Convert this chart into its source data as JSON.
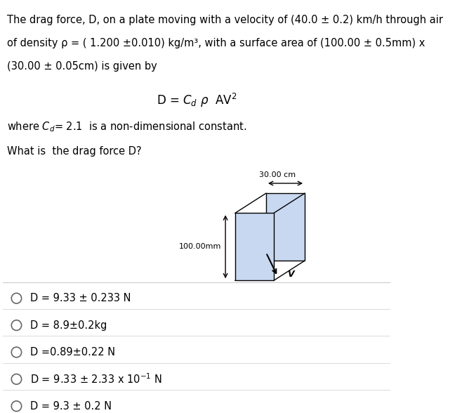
{
  "title_lines": [
    "The drag force, D, on a plate moving with a velocity of (40.0 ± 0.2) km/h through air",
    "of density ρ = ( 1.200 ±0.010) kg/m³, with a surface area of (100.00 ± 0.5mm) x",
    "(30.00 ± 0.05cm) is given by"
  ],
  "question_line": "What is  the drag force D?",
  "diagram_label_top": "30.00 cm",
  "diagram_label_left": "100.00mm",
  "diagram_label_right": "V",
  "options": [
    "D = 9.33 ± 0.233 N",
    "D = 8.9±0.2kg",
    "D =0.89±0.22 N",
    "D = 9.33 ± 2.33 x 10⁻¹ N",
    "D = 9.3 ± 0.2 N"
  ],
  "bg_color": "#ffffff",
  "text_color": "#000000",
  "plate_fill": "#c8d8f0",
  "plate_edge": "#000000",
  "separator_color": "#cccccc"
}
